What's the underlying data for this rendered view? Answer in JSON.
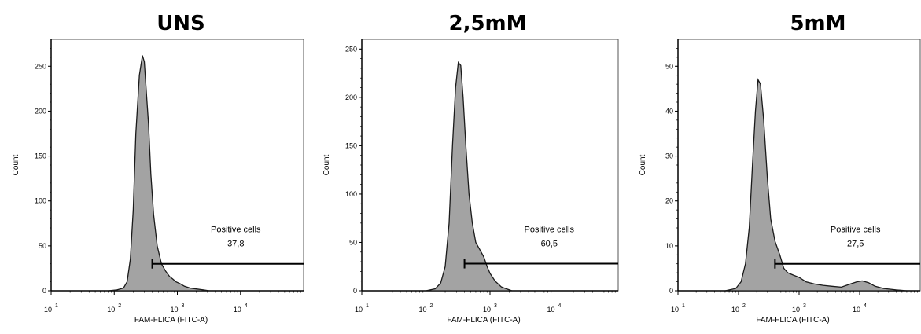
{
  "chart_data": [
    {
      "type": "area",
      "title": "UNS",
      "xlabel": "FAM-FLICA (FITC-A)",
      "ylabel": "Count",
      "x_scale": "log",
      "xlim": [
        10,
        100000
      ],
      "x_ticks": [
        {
          "base": "10",
          "exp": "1"
        },
        {
          "base": "10",
          "exp": "2"
        },
        {
          "base": "10",
          "exp": "3"
        },
        {
          "base": "10",
          "exp": "4"
        }
      ],
      "ylim": [
        0,
        280
      ],
      "y_ticks": [
        "0",
        "50",
        "100",
        "150",
        "200",
        "250"
      ],
      "y_tick_values": [
        0,
        50,
        100,
        150,
        200,
        250
      ],
      "series": [
        {
          "x": [
            80,
            110,
            140,
            160,
            180,
            200,
            220,
            250,
            280,
            300,
            320,
            350,
            380,
            420,
            480,
            560,
            650,
            750,
            850,
            950,
            1100,
            1300,
            1600,
            2000,
            2600,
            3200
          ],
          "y": [
            0,
            1,
            3,
            10,
            35,
            90,
            175,
            240,
            262,
            255,
            225,
            185,
            130,
            85,
            50,
            30,
            22,
            16,
            13,
            10,
            8,
            5,
            3,
            2,
            1,
            0
          ]
        }
      ],
      "gate": {
        "label": "Positive cells",
        "value": "37,8",
        "from": 400,
        "to": 100000,
        "y": 30
      }
    },
    {
      "type": "area",
      "title": "2,5mM",
      "xlabel": "FAM-FLICA (FITC-A)",
      "ylabel": "Count",
      "x_scale": "log",
      "xlim": [
        10,
        100000
      ],
      "x_ticks": [
        {
          "base": "10",
          "exp": "1"
        },
        {
          "base": "10",
          "exp": "2"
        },
        {
          "base": "10",
          "exp": "3"
        },
        {
          "base": "10",
          "exp": "4"
        }
      ],
      "ylim": [
        0,
        260
      ],
      "y_ticks": [
        "0",
        "50",
        "100",
        "150",
        "200",
        "250"
      ],
      "y_tick_values": [
        0,
        50,
        100,
        150,
        200,
        250
      ],
      "series": [
        {
          "x": [
            100,
            140,
            170,
            200,
            230,
            260,
            290,
            320,
            350,
            380,
            420,
            470,
            530,
            600,
            700,
            800,
            900,
            1000,
            1200,
            1500,
            1800,
            2200
          ],
          "y": [
            0,
            2,
            8,
            25,
            70,
            150,
            210,
            236,
            233,
            200,
            150,
            100,
            70,
            50,
            42,
            35,
            25,
            18,
            10,
            4,
            2,
            0
          ]
        }
      ],
      "gate": {
        "label": "Positive cells",
        "value": "60,5",
        "from": 400,
        "to": 100000,
        "y": 28
      }
    },
    {
      "type": "area",
      "title": "5mM",
      "xlabel": "FAM-FLICA (FITC-A)",
      "ylabel": "Count",
      "x_scale": "log",
      "xlim": [
        10,
        100000
      ],
      "x_ticks": [
        {
          "base": "10",
          "exp": "1"
        },
        {
          "base": "10",
          "exp": "2"
        },
        {
          "base": "10",
          "exp": "3"
        },
        {
          "base": "10",
          "exp": "4"
        }
      ],
      "ylim": [
        0,
        56
      ],
      "y_ticks": [
        "0",
        "10",
        "20",
        "30",
        "40",
        "50"
      ],
      "y_tick_values": [
        0,
        10,
        20,
        30,
        40,
        50
      ],
      "series": [
        {
          "x": [
            60,
            90,
            110,
            130,
            150,
            170,
            190,
            210,
            230,
            260,
            300,
            340,
            400,
            480,
            560,
            650,
            800,
            1000,
            1300,
            1800,
            2500,
            3500,
            5000,
            7000,
            9000,
            11000,
            14000,
            18000,
            25000,
            40000,
            60000,
            100000
          ],
          "y": [
            0,
            0.5,
            2,
            6,
            14,
            28,
            40,
            47,
            46,
            38,
            25,
            16,
            11,
            8,
            5,
            4,
            3.5,
            3,
            2,
            1.5,
            1.2,
            1,
            0.8,
            1.5,
            2,
            2.2,
            1.8,
            1,
            0.5,
            0.2,
            0,
            0
          ]
        }
      ],
      "gate": {
        "label": "Positive cells",
        "value": "27,5",
        "from": 400,
        "to": 100000,
        "y": 6
      }
    }
  ]
}
